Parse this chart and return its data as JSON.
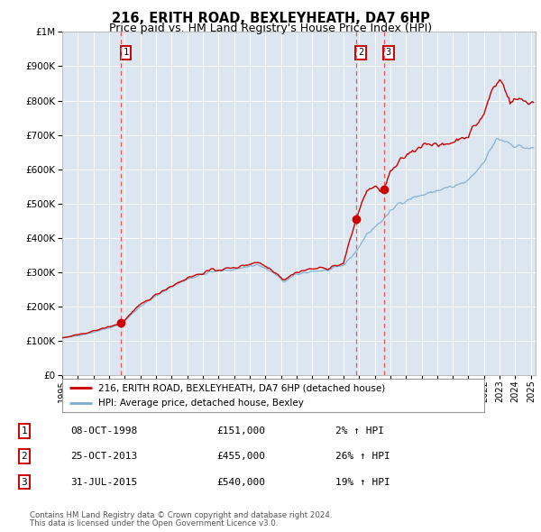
{
  "title": "216, ERITH ROAD, BEXLEYHEATH, DA7 6HP",
  "subtitle": "Price paid vs. HM Land Registry's House Price Index (HPI)",
  "legend_line1": "216, ERITH ROAD, BEXLEYHEATH, DA7 6HP (detached house)",
  "legend_line2": "HPI: Average price, detached house, Bexley",
  "footer1": "Contains HM Land Registry data © Crown copyright and database right 2024.",
  "footer2": "This data is licensed under the Open Government Licence v3.0.",
  "table_rows": [
    [
      "1",
      "08-OCT-1998",
      "£151,000",
      "2% ↑ HPI"
    ],
    [
      "2",
      "25-OCT-2013",
      "£455,000",
      "26% ↑ HPI"
    ],
    [
      "3",
      "31-JUL-2015",
      "£540,000",
      "19% ↑ HPI"
    ]
  ],
  "sale_dates_decimal": [
    1998.77,
    2013.81,
    2015.58
  ],
  "sale_prices": [
    151000,
    455000,
    540000
  ],
  "vline_dates": [
    1998.77,
    2013.81,
    2015.58
  ],
  "ylim": [
    0,
    1000000
  ],
  "xlim_start": 1995.0,
  "xlim_end": 2025.3,
  "red_color": "#cc0000",
  "blue_color": "#7aadcf",
  "bg_color": "#dce6f1",
  "grid_color": "#ffffff",
  "vline_color": "#ee5555",
  "seed": 42
}
